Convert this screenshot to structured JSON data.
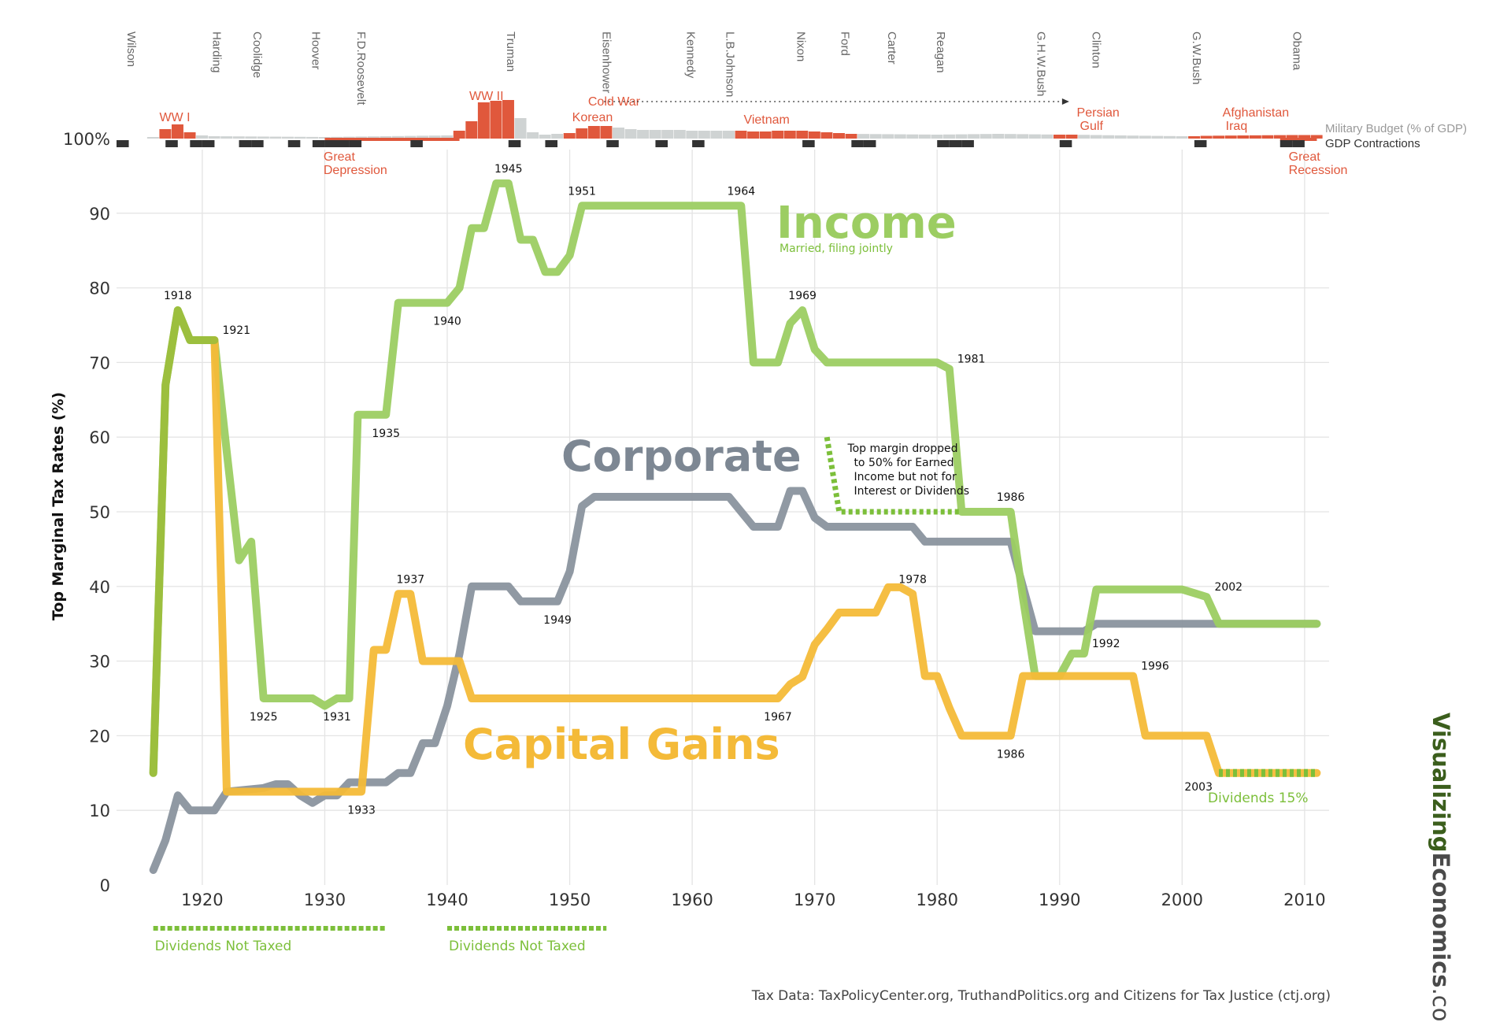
{
  "colors": {
    "income": "#9ccd62",
    "corporate": "#8a939e",
    "capital_gains": "#f4ba38",
    "dividends": "#7cbf3a",
    "war": "#e0583c",
    "budget": "#cfd3d3",
    "contraction": "#333333",
    "brand_dark": "#3b5e1c",
    "brand_light": "#4a4a4a"
  },
  "chart_data": {
    "type": "line",
    "ylabel": "Top Marginal Tax Rates (%)",
    "xlim": [
      1913,
      2012
    ],
    "ylim": [
      0,
      100
    ],
    "x_ticks": [
      1920,
      1930,
      1940,
      1950,
      1960,
      1970,
      1980,
      1990,
      2000,
      2010
    ],
    "y_ticks": [
      0,
      10,
      20,
      30,
      40,
      50,
      60,
      70,
      80,
      90
    ],
    "top_label": "100%",
    "series": [
      {
        "name": "Income",
        "subtitle": "Married, filing jointly",
        "key": "income",
        "points": [
          [
            1916,
            15
          ],
          [
            1917,
            67
          ],
          [
            1918,
            77
          ],
          [
            1919,
            73
          ],
          [
            1920,
            73
          ],
          [
            1921,
            73
          ],
          [
            1922,
            58
          ],
          [
            1923,
            43.5
          ],
          [
            1924,
            46
          ],
          [
            1925,
            25
          ],
          [
            1929,
            25
          ],
          [
            1930,
            24
          ],
          [
            1931,
            25
          ],
          [
            1932,
            25
          ],
          [
            1932.7,
            63
          ],
          [
            1935,
            63
          ],
          [
            1936,
            78
          ],
          [
            1940,
            78
          ],
          [
            1941,
            80
          ],
          [
            1942,
            88
          ],
          [
            1943,
            88
          ],
          [
            1944,
            94
          ],
          [
            1945,
            94
          ],
          [
            1946,
            86.45
          ],
          [
            1947,
            86.45
          ],
          [
            1948,
            82.13
          ],
          [
            1949,
            82.13
          ],
          [
            1950,
            84.36
          ],
          [
            1951,
            91
          ],
          [
            1964,
            91
          ],
          [
            1965,
            70
          ],
          [
            1967,
            70
          ],
          [
            1968,
            75.25
          ],
          [
            1969,
            77
          ],
          [
            1970,
            71.75
          ],
          [
            1971,
            70
          ],
          [
            1980,
            70
          ],
          [
            1981,
            69.13
          ],
          [
            1982,
            50
          ],
          [
            1986,
            50
          ],
          [
            1987,
            38.5
          ],
          [
            1988,
            28
          ],
          [
            1990,
            28
          ],
          [
            1991,
            31
          ],
          [
            1992,
            31
          ],
          [
            1993,
            39.6
          ],
          [
            2000,
            39.6
          ],
          [
            2001,
            39.1
          ],
          [
            2002,
            38.6
          ],
          [
            2003,
            35
          ],
          [
            2011,
            35
          ]
        ],
        "labels": [
          [
            "1918",
            1918,
            77,
            "above"
          ],
          [
            "1921",
            1921,
            73,
            "right"
          ],
          [
            "1925",
            1925,
            25,
            "below"
          ],
          [
            "1931",
            1931,
            25,
            "below"
          ],
          [
            "1935",
            1935,
            63,
            "below"
          ],
          [
            "1940",
            1940,
            78,
            "below"
          ],
          [
            "1945",
            1945,
            94,
            "above"
          ],
          [
            "1951",
            1951,
            91,
            "above"
          ],
          [
            "1964",
            1964,
            91,
            "above"
          ],
          [
            "1969",
            1969,
            77,
            "above"
          ],
          [
            "1981",
            1981,
            69.13,
            "right"
          ],
          [
            "1986",
            1986,
            50,
            "above"
          ],
          [
            "1992",
            1992,
            31,
            "right"
          ],
          [
            "2002",
            2002,
            38.6,
            "right"
          ]
        ]
      },
      {
        "name": "Corporate",
        "key": "corporate",
        "points": [
          [
            1916,
            2
          ],
          [
            1917,
            6
          ],
          [
            1918,
            12
          ],
          [
            1919,
            10
          ],
          [
            1921,
            10
          ],
          [
            1922,
            12.5
          ],
          [
            1925,
            13
          ],
          [
            1926,
            13.5
          ],
          [
            1927,
            13.5
          ],
          [
            1928,
            12
          ],
          [
            1929,
            11
          ],
          [
            1930,
            12
          ],
          [
            1931,
            12
          ],
          [
            1932,
            13.75
          ],
          [
            1935,
            13.75
          ],
          [
            1936,
            15
          ],
          [
            1937,
            15
          ],
          [
            1938,
            19
          ],
          [
            1939,
            19
          ],
          [
            1940,
            24
          ],
          [
            1941,
            31
          ],
          [
            1942,
            40
          ],
          [
            1945,
            40
          ],
          [
            1946,
            38
          ],
          [
            1949,
            38
          ],
          [
            1950,
            42
          ],
          [
            1951,
            50.75
          ],
          [
            1952,
            52
          ],
          [
            1963,
            52
          ],
          [
            1964,
            50
          ],
          [
            1965,
            48
          ],
          [
            1967,
            48
          ],
          [
            1968,
            52.8
          ],
          [
            1969,
            52.8
          ],
          [
            1970,
            49.2
          ],
          [
            1971,
            48
          ],
          [
            1978,
            48
          ],
          [
            1979,
            46
          ],
          [
            1986,
            46
          ],
          [
            1987,
            40
          ],
          [
            1988,
            34
          ],
          [
            1992,
            34
          ],
          [
            1993,
            35
          ],
          [
            2011,
            35
          ]
        ],
        "labels": [
          [
            "1949",
            1949,
            38,
            "below"
          ]
        ]
      },
      {
        "name": "Capital Gains",
        "key": "capital_gains",
        "points": [
          [
            1921,
            73
          ],
          [
            1922,
            12.5
          ],
          [
            1933,
            12.5
          ],
          [
            1934,
            31.5
          ],
          [
            1935,
            31.5
          ],
          [
            1936,
            39
          ],
          [
            1937,
            39
          ],
          [
            1938,
            30
          ],
          [
            1941,
            30
          ],
          [
            1942,
            25
          ],
          [
            1967,
            25
          ],
          [
            1968,
            26.9
          ],
          [
            1969,
            27.9
          ],
          [
            1970,
            32.21
          ],
          [
            1971,
            34.25
          ],
          [
            1972,
            36.5
          ],
          [
            1975,
            36.5
          ],
          [
            1976,
            39.88
          ],
          [
            1977,
            39.88
          ],
          [
            1978,
            39
          ],
          [
            1979,
            28
          ],
          [
            1980,
            28
          ],
          [
            1981,
            23.7
          ],
          [
            1982,
            20
          ],
          [
            1986,
            20
          ],
          [
            1987,
            28
          ],
          [
            1996,
            28
          ],
          [
            1997,
            20
          ],
          [
            2002,
            20
          ],
          [
            2003,
            15
          ],
          [
            2011,
            15
          ]
        ],
        "labels": [
          [
            "1933",
            1933,
            12.5,
            "below"
          ],
          [
            "1937",
            1937,
            39,
            "above"
          ],
          [
            "1967",
            1967,
            25,
            "below"
          ],
          [
            "1978",
            1978,
            39,
            "above"
          ],
          [
            "1986",
            1986,
            20,
            "below"
          ],
          [
            "1996",
            1996,
            28,
            "right"
          ],
          [
            "2003",
            2003,
            15,
            "left"
          ]
        ]
      }
    ],
    "dividends": [
      {
        "label": "Dividends Not Taxed",
        "from": 1916,
        "to": 1935
      },
      {
        "label": "Dividends Not Taxed",
        "from": 1940,
        "to": 1953
      },
      {
        "label": "Dividends 15%",
        "from": 2003,
        "to": 2011,
        "y": 15
      }
    ],
    "annotation": {
      "lines": [
        "Top margin dropped",
        "to 50% for Earned",
        "Income but not for",
        "Interest or Dividends"
      ],
      "from": [
        1971,
        60
      ],
      "to": [
        1972,
        50
      ],
      "end": [
        1982,
        50
      ]
    },
    "presidents": [
      {
        "name": "Wilson",
        "year": 1913.5
      },
      {
        "name": "Harding",
        "year": 1920.5
      },
      {
        "name": "Coolidge",
        "year": 1923.8
      },
      {
        "name": "Hoover",
        "year": 1928.6
      },
      {
        "name": "F.D.Roosevelt",
        "year": 1932.3
      },
      {
        "name": "Truman",
        "year": 1944.5
      },
      {
        "name": "Eisenhower",
        "year": 1952.3
      },
      {
        "name": "Kennedy",
        "year": 1959.2
      },
      {
        "name": "L.B.Johnson",
        "year": 1962.4
      },
      {
        "name": "Nixon",
        "year": 1968.2
      },
      {
        "name": "Ford",
        "year": 1971.8
      },
      {
        "name": "Carter",
        "year": 1975.6
      },
      {
        "name": "Reagan",
        "year": 1979.6
      },
      {
        "name": "G.H.W.Bush",
        "year": 1987.8
      },
      {
        "name": "Clinton",
        "year": 1992.3
      },
      {
        "name": "G.W.Bush",
        "year": 2000.5
      },
      {
        "name": "Obama",
        "year": 2008.7
      }
    ],
    "military_budget": {
      "legend": "Military Budget (% of GDP)",
      "war_years": [
        1917,
        1918,
        1919,
        1941,
        1942,
        1943,
        1944,
        1945,
        1950,
        1951,
        1952,
        1953,
        1964,
        1965,
        1966,
        1967,
        1968,
        1969,
        1970,
        1971,
        1972,
        1973,
        1990,
        1991,
        2001,
        2002,
        2003,
        2004,
        2005,
        2006,
        2007,
        2008,
        2009,
        2010,
        2011
      ],
      "values": [
        [
          1916,
          0.2
        ],
        [
          1917,
          1.2
        ],
        [
          1918,
          1.8
        ],
        [
          1919,
          0.8
        ],
        [
          1920,
          0.4
        ],
        [
          1921,
          0.3
        ],
        [
          1930,
          0.2
        ],
        [
          1940,
          0.4
        ],
        [
          1941,
          1.0
        ],
        [
          1942,
          2.2
        ],
        [
          1943,
          4.6
        ],
        [
          1944,
          4.8
        ],
        [
          1945,
          4.9
        ],
        [
          1946,
          2.6
        ],
        [
          1947,
          0.8
        ],
        [
          1948,
          0.5
        ],
        [
          1949,
          0.6
        ],
        [
          1950,
          0.7
        ],
        [
          1951,
          1.3
        ],
        [
          1952,
          1.6
        ],
        [
          1953,
          1.6
        ],
        [
          1954,
          1.4
        ],
        [
          1955,
          1.2
        ],
        [
          1956,
          1.1
        ],
        [
          1957,
          1.1
        ],
        [
          1958,
          1.1
        ],
        [
          1959,
          1.1
        ],
        [
          1960,
          1.0
        ],
        [
          1961,
          1.0
        ],
        [
          1962,
          1.0
        ],
        [
          1963,
          1.0
        ],
        [
          1964,
          1.0
        ],
        [
          1965,
          0.9
        ],
        [
          1966,
          0.9
        ],
        [
          1967,
          1.0
        ],
        [
          1968,
          1.0
        ],
        [
          1969,
          1.0
        ],
        [
          1970,
          0.9
        ],
        [
          1971,
          0.8
        ],
        [
          1972,
          0.7
        ],
        [
          1973,
          0.6
        ],
        [
          1980,
          0.5
        ],
        [
          1985,
          0.6
        ],
        [
          1990,
          0.5
        ],
        [
          1991,
          0.5
        ],
        [
          1995,
          0.4
        ],
        [
          2000,
          0.3
        ],
        [
          2001,
          0.3
        ],
        [
          2002,
          0.35
        ],
        [
          2005,
          0.4
        ],
        [
          2009,
          0.45
        ],
        [
          2011,
          0.45
        ]
      ]
    },
    "gdp_contractions": {
      "legend": "GDP Contractions",
      "years": [
        1913.5,
        1917.5,
        1919.5,
        1920.5,
        1923.5,
        1924.5,
        1927.5,
        1929.5,
        1930.5,
        1931.5,
        1932.5,
        1937.5,
        1945.5,
        1948.5,
        1953.5,
        1957.5,
        1960.5,
        1969.5,
        1973.5,
        1974.5,
        1980.5,
        1981.5,
        1982.5,
        1990.5,
        2001.5,
        2008.5,
        2009.5
      ]
    },
    "events": [
      {
        "label": "WW I",
        "year": 1916.5
      },
      {
        "label": "Great",
        "label2": "Depression",
        "year": 1929.9
      },
      {
        "label": "WW II",
        "year": 1941.8
      },
      {
        "label": "Korean",
        "year": 1950.2
      },
      {
        "label": "Cold War",
        "year": 1951.5
      },
      {
        "label": "Vietnam",
        "year": 1964.2
      },
      {
        "label": "Persian",
        "label2": "Gulf",
        "year": 1991.4
      },
      {
        "label": "Afghanistan",
        "label2": "Iraq",
        "year": 2003.3
      },
      {
        "label": "Great",
        "label2": "Recession",
        "year": 2008.7
      }
    ]
  },
  "source": "Tax Data:  TaxPolicyCenter.org, TruthandPolitics.org and Citizens for Tax Justice (ctj.org)",
  "brand": {
    "part1": "Visualizing",
    "part2": "Economics",
    "part3": ".com"
  }
}
